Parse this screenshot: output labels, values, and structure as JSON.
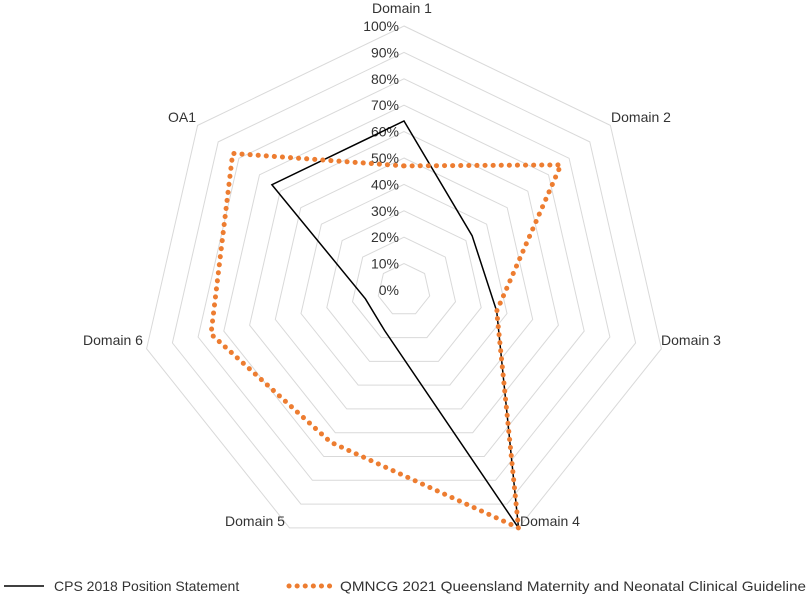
{
  "chart_data": {
    "type": "radar",
    "categories": [
      "Domain 1",
      "Domain 2",
      "Domain 3",
      "Domain 4",
      "Domain 5",
      "Domain 6",
      "OA1"
    ],
    "ticks": [
      "0%",
      "10%",
      "20%",
      "30%",
      "40%",
      "50%",
      "60%",
      "70%",
      "80%",
      "90%",
      "100%"
    ],
    "rlim": [
      0,
      100
    ],
    "grid": true,
    "legend_position": "bottom",
    "series": [
      {
        "name": "CPS 2018 Position Statement",
        "color": "#000000",
        "style": "solid",
        "values": [
          64,
          33,
          36,
          100,
          17,
          15,
          64
        ]
      },
      {
        "name": "QMNCG 2021 Queensland Maternity and Neonatal Clinical Guideline",
        "color": "#ED7D31",
        "style": "dotted",
        "values": [
          47,
          76,
          36,
          100,
          64,
          75,
          83
        ]
      }
    ]
  }
}
